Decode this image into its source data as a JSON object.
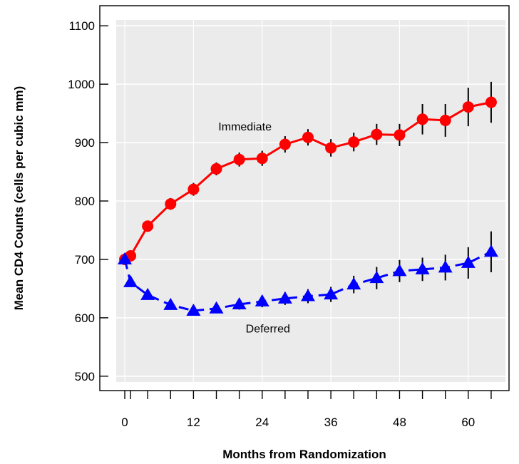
{
  "chart_data": {
    "type": "line",
    "xlabel": "Months from Randomization",
    "ylabel": "Mean CD4 Counts (cells per cubic mm)",
    "xlim": [
      -1.5,
      66.5
    ],
    "ylim": [
      490,
      1110
    ],
    "x_ticks": [
      0,
      1,
      4,
      8,
      12,
      16,
      20,
      24,
      28,
      32,
      36,
      40,
      44,
      48,
      52,
      56,
      60,
      64
    ],
    "x_tick_labels": [
      {
        "value": 0,
        "label": "0"
      },
      {
        "value": 12,
        "label": "12"
      },
      {
        "value": 24,
        "label": "24"
      },
      {
        "value": 36,
        "label": "36"
      },
      {
        "value": 48,
        "label": "48"
      },
      {
        "value": 60,
        "label": "60"
      }
    ],
    "y_ticks": [
      500,
      600,
      700,
      800,
      900,
      1000,
      1100
    ],
    "y_tick_labels": [
      "500",
      "600",
      "700",
      "800",
      "900",
      "1000",
      "1100"
    ],
    "grid": true,
    "series": [
      {
        "name": "Immediate",
        "color": "#ff0000",
        "marker": "circle",
        "line_style": "solid",
        "x": [
          0,
          1,
          4,
          8,
          12,
          16,
          20,
          24,
          28,
          32,
          36,
          40,
          44,
          48,
          52,
          56,
          60,
          64
        ],
        "y": [
          700,
          706,
          757,
          795,
          820,
          855,
          871,
          873,
          897,
          909,
          891,
          901,
          914,
          913,
          940,
          938,
          961,
          969
        ],
        "err": [
          0,
          0,
          0,
          10,
          11,
          11,
          12,
          13,
          14,
          14,
          15,
          16,
          18,
          19,
          26,
          28,
          33,
          35
        ]
      },
      {
        "name": "Deferred",
        "color": "#0000ff",
        "marker": "triangle",
        "line_style": "dashed",
        "x": [
          0,
          1,
          4,
          8,
          12,
          16,
          20,
          24,
          28,
          32,
          36,
          40,
          44,
          48,
          52,
          56,
          60,
          64
        ],
        "y": [
          700,
          661,
          639,
          622,
          612,
          616,
          623,
          628,
          633,
          637,
          640,
          657,
          668,
          680,
          683,
          686,
          694,
          713
        ],
        "err": [
          0,
          0,
          0,
          8,
          8,
          8,
          9,
          10,
          11,
          12,
          13,
          15,
          19,
          19,
          20,
          22,
          27,
          35
        ]
      }
    ],
    "annotations": [
      {
        "text": "Immediate",
        "x": 21,
        "y": 921
      },
      {
        "text": "Deferred",
        "x": 25,
        "y": 575
      }
    ]
  }
}
